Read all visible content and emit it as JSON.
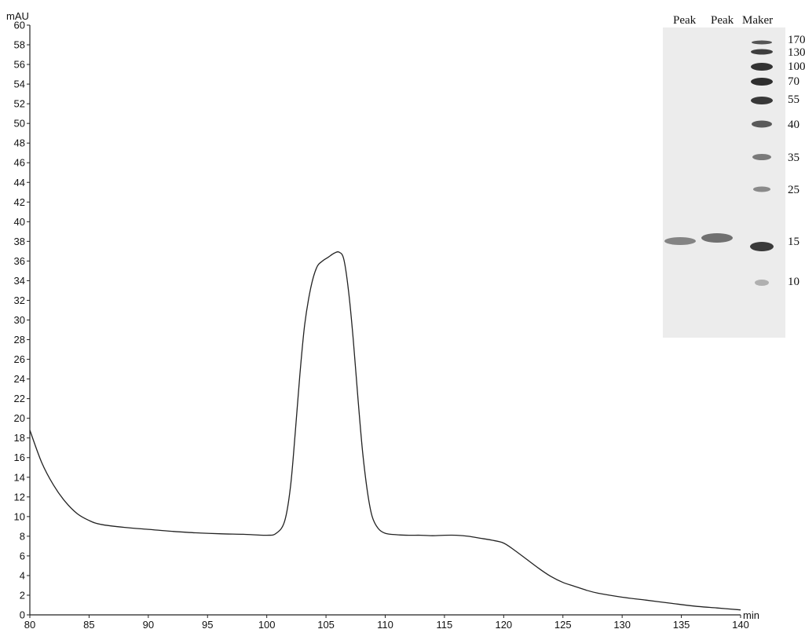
{
  "chart_data": {
    "type": "line",
    "title": "",
    "xlabel": "min",
    "ylabel": "mAU",
    "xlim": [
      80,
      140
    ],
    "ylim": [
      0,
      60
    ],
    "x_ticks": [
      80,
      85,
      90,
      95,
      100,
      105,
      110,
      115,
      120,
      125,
      130,
      135,
      140
    ],
    "y_ticks": [
      0,
      2,
      4,
      6,
      8,
      10,
      12,
      14,
      16,
      18,
      20,
      22,
      24,
      26,
      28,
      30,
      32,
      34,
      36,
      38,
      40,
      42,
      44,
      46,
      48,
      50,
      52,
      54,
      56,
      58,
      60
    ],
    "grid": false,
    "line_color": "#222222",
    "series": [
      {
        "x": [
          80,
          81,
          82,
          83,
          84,
          85,
          86,
          88,
          90,
          92,
          94,
          96,
          98,
          100,
          100.8,
          101.5,
          102.0,
          102.4,
          102.8,
          103.2,
          103.7,
          104.2,
          104.7,
          105.2,
          105.7,
          106.1,
          106.5,
          106.9,
          107.3,
          107.7,
          108.1,
          108.5,
          108.9,
          109.4,
          110,
          111,
          112,
          113,
          114,
          115,
          116,
          117,
          118,
          119,
          120,
          121,
          122,
          123,
          124,
          125,
          126,
          127,
          128,
          130,
          132,
          134,
          136,
          138,
          140
        ],
        "y": [
          18.8,
          15.5,
          13.2,
          11.5,
          10.3,
          9.6,
          9.2,
          8.9,
          8.7,
          8.5,
          8.35,
          8.25,
          8.2,
          8.1,
          8.3,
          9.5,
          13.0,
          18.5,
          24.5,
          29.5,
          33.2,
          35.3,
          36.0,
          36.4,
          36.8,
          36.9,
          36.2,
          33.0,
          28.0,
          22.0,
          16.5,
          12.5,
          10.0,
          8.8,
          8.3,
          8.15,
          8.1,
          8.1,
          8.05,
          8.1,
          8.1,
          8.0,
          7.8,
          7.6,
          7.3,
          6.5,
          5.6,
          4.7,
          3.9,
          3.3,
          2.9,
          2.5,
          2.2,
          1.8,
          1.5,
          1.2,
          0.9,
          0.7,
          0.5
        ]
      }
    ]
  },
  "gel_inset": {
    "lane_labels": [
      "Peak",
      "Peak",
      "Maker"
    ],
    "marker_sizes": [
      "170",
      "130",
      "100",
      "70",
      "55",
      "40",
      "35",
      "25",
      "15",
      "10"
    ],
    "background_color": "#ececec",
    "band_color": "#4a4a4a"
  }
}
